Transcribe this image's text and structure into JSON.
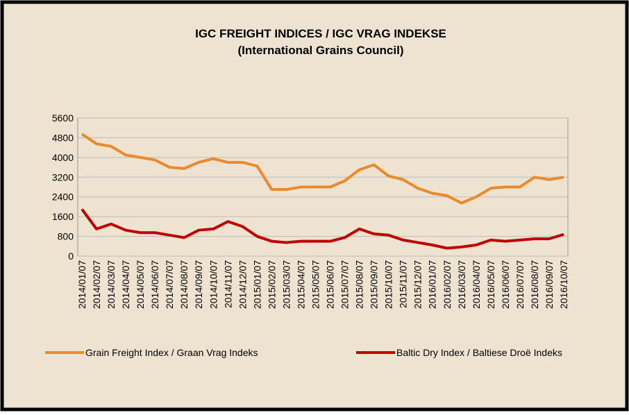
{
  "chart_data": {
    "type": "line",
    "title": "IGC FREIGHT INDICES / IGC VRAG INDEKSE",
    "subtitle": "(International Grains Council)",
    "categories": [
      "2014/01/07",
      "2014/02/07",
      "2014/03/07",
      "2014/04/07",
      "2014/05/07",
      "2014/06/07",
      "2014/07/07",
      "2014/08/07",
      "2014/09/07",
      "2014/10/07",
      "2014/11/07",
      "2014/12/07",
      "2015/01/07",
      "2015/02/07",
      "2015/03/07",
      "2015/04/07",
      "2015/05/07",
      "2015/06/07",
      "2015/07/07",
      "2015/08/07",
      "2015/09/07",
      "2015/10/07",
      "2015/11/07",
      "2015/12/07",
      "2016/01/07",
      "2016/02/07",
      "2016/03/07",
      "2016/04/07",
      "2016/05/07",
      "2016/06/07",
      "2016/07/07",
      "2016/08/07",
      "2016/09/07",
      "2016/10/07"
    ],
    "series": [
      {
        "name": "Grain Freight Index / Graan Vrag Indeks",
        "color": "#ea8a2c",
        "values": [
          4950,
          4550,
          4450,
          4100,
          4000,
          3900,
          3600,
          3550,
          3800,
          3950,
          3800,
          3800,
          3650,
          2700,
          2700,
          2800,
          2800,
          2800,
          3050,
          3500,
          3700,
          3250,
          3100,
          2750,
          2550,
          2450,
          2150,
          2400,
          2750,
          2800,
          2800,
          3200,
          3100,
          3200
        ]
      },
      {
        "name": "Baltic Dry Index / Baltiese Droë Indeks",
        "color": "#c00000",
        "values": [
          1900,
          1100,
          1300,
          1050,
          950,
          950,
          850,
          750,
          1050,
          1100,
          1400,
          1200,
          800,
          600,
          550,
          600,
          600,
          600,
          750,
          1100,
          900,
          850,
          650,
          550,
          450,
          320,
          370,
          450,
          650,
          600,
          650,
          700,
          700,
          880
        ]
      }
    ],
    "ylim": [
      0,
      5600
    ],
    "yticks": [
      0,
      800,
      1600,
      2400,
      3200,
      4000,
      4800,
      5600
    ],
    "grid": true,
    "legend": "bottom"
  }
}
